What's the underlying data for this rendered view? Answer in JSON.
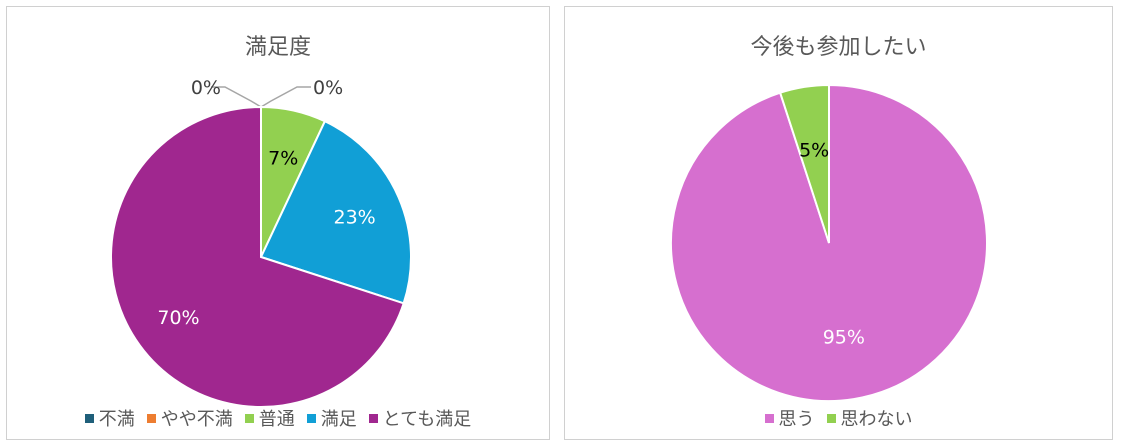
{
  "chart_data": [
    {
      "type": "pie",
      "title": "満足度",
      "legend": "bottom",
      "slices": [
        {
          "label": "不満",
          "value": 0,
          "percent_label": "0%",
          "color": "#1f5f7a"
        },
        {
          "label": "やや不満",
          "value": 0,
          "percent_label": "0%",
          "color": "#ed7d31"
        },
        {
          "label": "普通",
          "value": 7,
          "percent_label": "7%",
          "color": "#92d050"
        },
        {
          "label": "満足",
          "value": 23,
          "percent_label": "23%",
          "color": "#119fd6"
        },
        {
          "label": "とても満足",
          "value": 70,
          "percent_label": "70%",
          "color": "#a0278f"
        }
      ]
    },
    {
      "type": "pie",
      "title": "今後も参加したい",
      "legend": "bottom",
      "slices": [
        {
          "label": "思う",
          "value": 95,
          "percent_label": "95%",
          "color": "#d66fcf"
        },
        {
          "label": "思わない",
          "value": 5,
          "percent_label": "5%",
          "color": "#92d050"
        }
      ]
    }
  ]
}
